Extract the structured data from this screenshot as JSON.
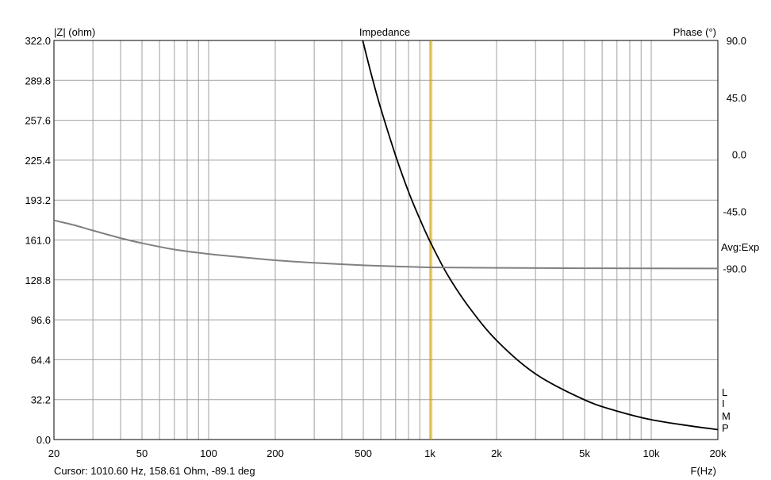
{
  "chart_data": {
    "type": "line",
    "title": "Impedance",
    "ylabel_left": "|Z| (ohm)",
    "ylabel_right": "Phase (°)",
    "xlabel": "F(Hz)",
    "x_scale": "log",
    "xlim": [
      20,
      20000
    ],
    "ylim_left": [
      0,
      322
    ],
    "ylim_right": [
      -225,
      90
    ],
    "grid": true,
    "x_ticks": [
      {
        "v": 20,
        "label": "20"
      },
      {
        "v": 50,
        "label": "50"
      },
      {
        "v": 100,
        "label": "100"
      },
      {
        "v": 200,
        "label": "200"
      },
      {
        "v": 500,
        "label": "500"
      },
      {
        "v": 1000,
        "label": "1k"
      },
      {
        "v": 2000,
        "label": "2k"
      },
      {
        "v": 5000,
        "label": "5k"
      },
      {
        "v": 10000,
        "label": "10k"
      },
      {
        "v": 20000,
        "label": "20k"
      }
    ],
    "y_left_ticks": [
      "0.0",
      "32.2",
      "64.4",
      "96.6",
      "128.8",
      "161.0",
      "193.2",
      "225.4",
      "257.6",
      "289.8",
      "322.0"
    ],
    "y_right_ticks": [
      {
        "v": 90,
        "label": "90.0"
      },
      {
        "v": 45,
        "label": "45.0"
      },
      {
        "v": 0,
        "label": "0.0"
      },
      {
        "v": -45,
        "label": "-45.0"
      },
      {
        "v": -90,
        "label": "-90.0"
      }
    ],
    "series": [
      {
        "axis": "left",
        "color": "#000000",
        "x": [
          497,
          550,
          600,
          700,
          800,
          900,
          1000,
          1200,
          1500,
          2000,
          3000,
          5000,
          7000,
          10000,
          15000,
          20000
        ],
        "y": [
          322,
          291,
          267,
          229,
          200,
          178,
          160,
          133,
          107,
          80,
          53,
          32,
          23,
          16,
          11,
          8
        ]
      },
      {
        "axis": "right",
        "color": "#808080",
        "x": [
          20,
          25,
          30,
          40,
          50,
          70,
          100,
          150,
          200,
          300,
          500,
          700,
          1000,
          2000,
          5000,
          20000
        ],
        "y": [
          -52,
          -56,
          -60,
          -66,
          -70,
          -75,
          -78.5,
          -81.5,
          -83.5,
          -85.5,
          -87.5,
          -88.3,
          -89.1,
          -89.5,
          -89.8,
          -90
        ]
      }
    ],
    "cursor": {
      "x": 1010.6,
      "color": "#c8a000"
    },
    "annotations": {
      "avg": "Avg:Exp",
      "limp": [
        "L",
        "I",
        "M",
        "P"
      ],
      "cursor_readout": "Cursor: 1010.60 Hz, 158.61 Ohm, -89.1 deg"
    }
  }
}
